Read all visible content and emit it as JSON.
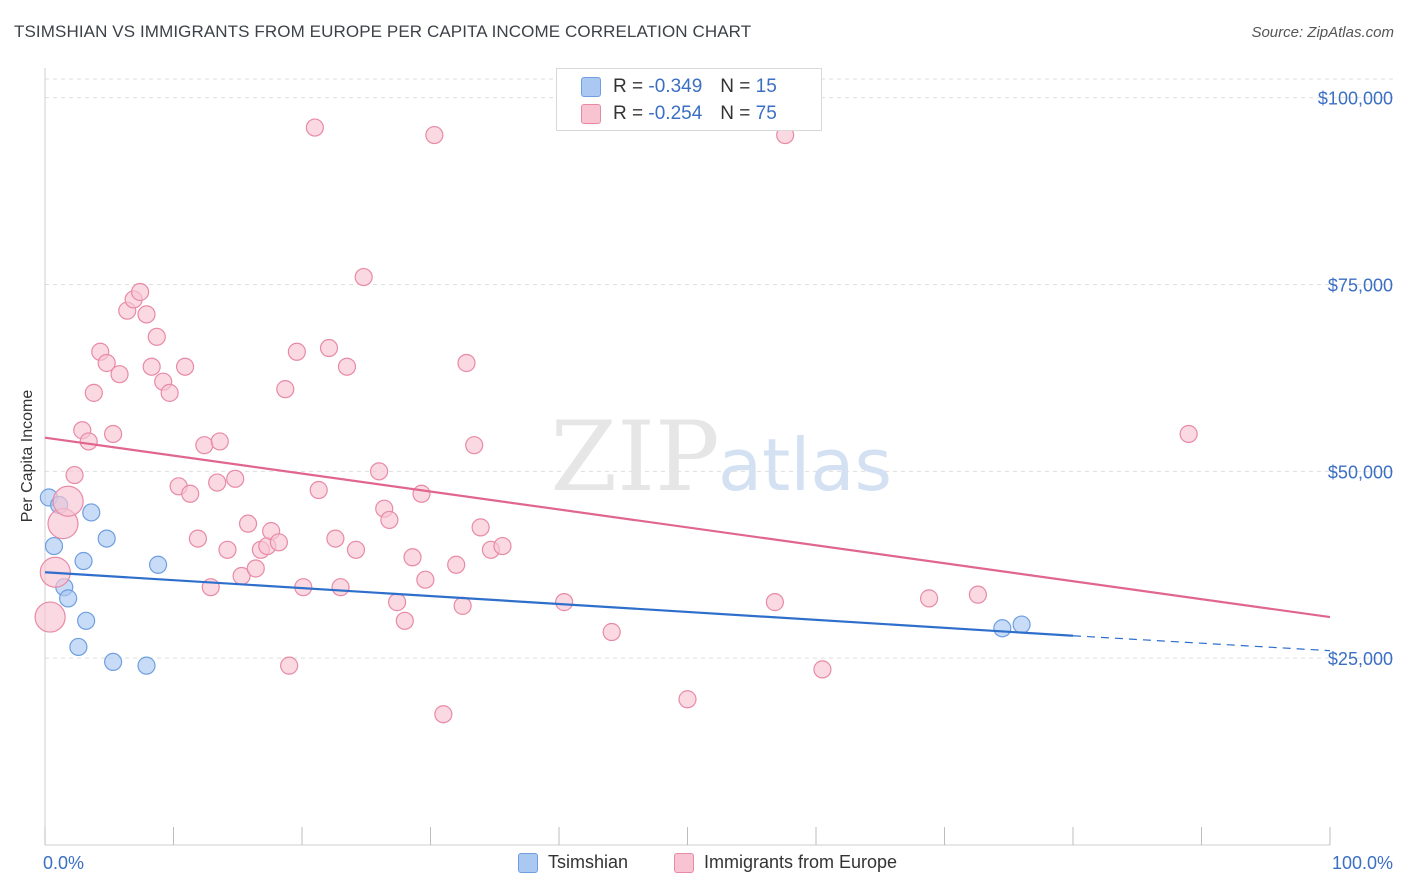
{
  "title": "TSIMSHIAN VS IMMIGRANTS FROM EUROPE PER CAPITA INCOME CORRELATION CHART",
  "source": "Source: ZipAtlas.com",
  "watermark": {
    "zip": "ZIP",
    "atlas": "atlas"
  },
  "legend_top": [
    {
      "r_label": "R =",
      "r_value": "-0.349",
      "n_label": "N =",
      "n_value": "15",
      "color": "#aac8f2",
      "border": "#6f9fe0"
    },
    {
      "r_label": "R =",
      "r_value": "-0.254",
      "n_label": "N =",
      "n_value": "75",
      "color": "#f8c4d2",
      "border": "#e88aa6"
    }
  ],
  "legend_bottom": [
    {
      "label": "Tsimshian",
      "color": "#aac8f2",
      "border": "#6f9fe0"
    },
    {
      "label": "Immigrants from Europe",
      "color": "#f8c4d2",
      "border": "#e88aa6"
    }
  ],
  "chart_data": {
    "type": "scatter",
    "ylabel": "Per Capita Income",
    "x_tick_labels": [
      "0.0%",
      "100.0%"
    ],
    "y_tick_labels": [
      "$25,000",
      "$50,000",
      "$75,000",
      "$100,000"
    ],
    "y_ticks": [
      25000,
      50000,
      75000,
      100000
    ],
    "xlim": [
      0,
      100
    ],
    "ylim": [
      0,
      102500
    ],
    "grid": true,
    "series": [
      {
        "name": "Tsimshian",
        "color": "#6f9fe0",
        "fill": "#aac8f2",
        "line_color": "#2f6fcc",
        "trend": {
          "x0": 0,
          "y0": 36500,
          "x1": 80,
          "y1": 28000,
          "dash_to_x": 100,
          "dash_to_y": 26000
        },
        "points": [
          {
            "x": 0.3,
            "y": 46500
          },
          {
            "x": 0.7,
            "y": 40000
          },
          {
            "x": 1.1,
            "y": 45500
          },
          {
            "x": 1.5,
            "y": 34500
          },
          {
            "x": 1.8,
            "y": 33000
          },
          {
            "x": 2.6,
            "y": 26500
          },
          {
            "x": 3.0,
            "y": 38000
          },
          {
            "x": 3.2,
            "y": 30000
          },
          {
            "x": 3.6,
            "y": 44500
          },
          {
            "x": 4.8,
            "y": 41000
          },
          {
            "x": 5.3,
            "y": 24500
          },
          {
            "x": 7.9,
            "y": 24000
          },
          {
            "x": 8.8,
            "y": 37500
          },
          {
            "x": 74.5,
            "y": 29000
          },
          {
            "x": 76.0,
            "y": 29500
          }
        ]
      },
      {
        "name": "Immigrants from Europe",
        "color": "#e88aa6",
        "fill": "#f8c4d2",
        "line_color": "#e0668f",
        "trend": {
          "x0": 0,
          "y0": 54500,
          "x1": 100,
          "y1": 30500
        },
        "points": [
          {
            "x": 0.4,
            "y": 30500,
            "big": 1
          },
          {
            "x": 0.8,
            "y": 36500,
            "big": 1
          },
          {
            "x": 1.4,
            "y": 43000,
            "big": 1
          },
          {
            "x": 1.8,
            "y": 46000,
            "big": 1
          },
          {
            "x": 2.3,
            "y": 49500
          },
          {
            "x": 2.9,
            "y": 55500
          },
          {
            "x": 3.4,
            "y": 54000
          },
          {
            "x": 3.8,
            "y": 60500
          },
          {
            "x": 4.3,
            "y": 66000
          },
          {
            "x": 4.8,
            "y": 64500
          },
          {
            "x": 5.3,
            "y": 55000
          },
          {
            "x": 5.8,
            "y": 63000
          },
          {
            "x": 6.4,
            "y": 71500
          },
          {
            "x": 6.9,
            "y": 73000
          },
          {
            "x": 7.4,
            "y": 74000
          },
          {
            "x": 7.9,
            "y": 71000
          },
          {
            "x": 8.3,
            "y": 64000
          },
          {
            "x": 8.7,
            "y": 68000
          },
          {
            "x": 9.2,
            "y": 62000
          },
          {
            "x": 9.7,
            "y": 60500
          },
          {
            "x": 10.4,
            "y": 48000
          },
          {
            "x": 10.9,
            "y": 64000
          },
          {
            "x": 11.3,
            "y": 47000
          },
          {
            "x": 11.9,
            "y": 41000
          },
          {
            "x": 12.4,
            "y": 53500
          },
          {
            "x": 12.9,
            "y": 34500
          },
          {
            "x": 13.4,
            "y": 48500
          },
          {
            "x": 13.6,
            "y": 54000
          },
          {
            "x": 14.2,
            "y": 39500
          },
          {
            "x": 14.8,
            "y": 49000
          },
          {
            "x": 15.3,
            "y": 36000
          },
          {
            "x": 15.8,
            "y": 43000
          },
          {
            "x": 16.4,
            "y": 37000
          },
          {
            "x": 16.8,
            "y": 39500
          },
          {
            "x": 17.3,
            "y": 40000
          },
          {
            "x": 17.6,
            "y": 42000
          },
          {
            "x": 18.2,
            "y": 40500
          },
          {
            "x": 18.7,
            "y": 61000
          },
          {
            "x": 19.0,
            "y": 24000
          },
          {
            "x": 19.6,
            "y": 66000
          },
          {
            "x": 20.1,
            "y": 34500
          },
          {
            "x": 21.0,
            "y": 96000
          },
          {
            "x": 21.3,
            "y": 47500
          },
          {
            "x": 22.1,
            "y": 66500
          },
          {
            "x": 22.6,
            "y": 41000
          },
          {
            "x": 23.0,
            "y": 34500
          },
          {
            "x": 23.5,
            "y": 64000
          },
          {
            "x": 24.2,
            "y": 39500
          },
          {
            "x": 24.8,
            "y": 76000
          },
          {
            "x": 26.0,
            "y": 50000
          },
          {
            "x": 26.4,
            "y": 45000
          },
          {
            "x": 26.8,
            "y": 43500
          },
          {
            "x": 27.4,
            "y": 32500
          },
          {
            "x": 28.0,
            "y": 30000
          },
          {
            "x": 28.6,
            "y": 38500
          },
          {
            "x": 29.3,
            "y": 47000
          },
          {
            "x": 29.6,
            "y": 35500
          },
          {
            "x": 30.3,
            "y": 95000
          },
          {
            "x": 31.0,
            "y": 17500
          },
          {
            "x": 32.0,
            "y": 37500
          },
          {
            "x": 32.5,
            "y": 32000
          },
          {
            "x": 32.8,
            "y": 64500
          },
          {
            "x": 33.4,
            "y": 53500
          },
          {
            "x": 33.9,
            "y": 42500
          },
          {
            "x": 34.7,
            "y": 39500
          },
          {
            "x": 35.6,
            "y": 40000
          },
          {
            "x": 40.4,
            "y": 32500
          },
          {
            "x": 44.1,
            "y": 28500
          },
          {
            "x": 50.0,
            "y": 19500
          },
          {
            "x": 56.8,
            "y": 32500
          },
          {
            "x": 60.5,
            "y": 23500
          },
          {
            "x": 68.8,
            "y": 33000
          },
          {
            "x": 72.6,
            "y": 33500
          },
          {
            "x": 89.0,
            "y": 55000
          },
          {
            "x": 57.6,
            "y": 95000
          }
        ]
      }
    ]
  }
}
